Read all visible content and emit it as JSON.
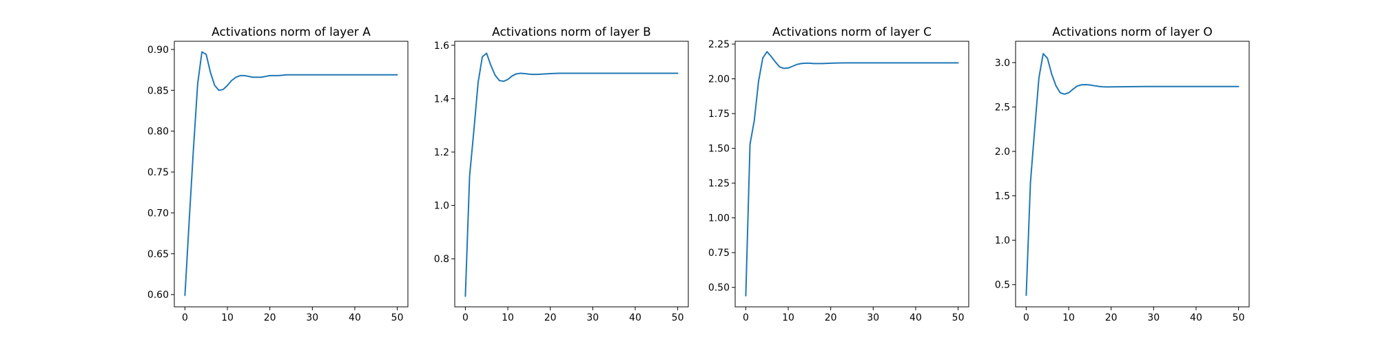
{
  "figure": {
    "background": "#ffffff",
    "line_color": "#1f77b4"
  },
  "chart_data": [
    {
      "type": "line",
      "title": "Activations norm of layer A",
      "xlabel": "",
      "ylabel": "",
      "grid": false,
      "xlim": [
        -2.5,
        52.5
      ],
      "ylim": [
        0.585,
        0.91
      ],
      "xticks": [
        0,
        10,
        20,
        30,
        40,
        50
      ],
      "yticks": [
        0.6,
        0.65,
        0.7,
        0.75,
        0.8,
        0.85,
        0.9
      ],
      "ytick_labels": [
        "0.60",
        "0.65",
        "0.70",
        "0.75",
        "0.80",
        "0.85",
        "0.90"
      ],
      "series": [
        {
          "x": [
            0,
            1,
            2,
            3,
            4,
            5,
            6,
            7,
            8,
            9,
            10,
            11,
            12,
            13,
            14,
            15,
            16,
            17,
            18,
            19,
            20,
            22,
            24,
            26,
            28,
            30,
            32,
            34,
            36,
            38,
            40,
            42,
            44,
            46,
            48,
            50
          ],
          "y": [
            0.599,
            0.69,
            0.778,
            0.858,
            0.897,
            0.894,
            0.872,
            0.856,
            0.85,
            0.851,
            0.856,
            0.862,
            0.866,
            0.868,
            0.868,
            0.867,
            0.866,
            0.866,
            0.866,
            0.867,
            0.868,
            0.868,
            0.869,
            0.869,
            0.869,
            0.869,
            0.869,
            0.869,
            0.869,
            0.869,
            0.869,
            0.869,
            0.869,
            0.869,
            0.869,
            0.869
          ]
        }
      ]
    },
    {
      "type": "line",
      "title": "Activations norm of layer B",
      "xlabel": "",
      "ylabel": "",
      "grid": false,
      "xlim": [
        -2.5,
        52.5
      ],
      "ylim": [
        0.62,
        1.615
      ],
      "xticks": [
        0,
        10,
        20,
        30,
        40,
        50
      ],
      "yticks": [
        0.8,
        1.0,
        1.2,
        1.4,
        1.6
      ],
      "ytick_labels": [
        "0.8",
        "1.0",
        "1.2",
        "1.4",
        "1.6"
      ],
      "series": [
        {
          "x": [
            0,
            1,
            2,
            3,
            4,
            5,
            6,
            7,
            8,
            9,
            10,
            11,
            12,
            13,
            14,
            15,
            16,
            17,
            18,
            19,
            20,
            22,
            24,
            26,
            28,
            30,
            32,
            34,
            36,
            38,
            40,
            42,
            44,
            46,
            48,
            50
          ],
          "y": [
            0.66,
            1.11,
            1.28,
            1.46,
            1.557,
            1.57,
            1.525,
            1.488,
            1.468,
            1.465,
            1.472,
            1.485,
            1.493,
            1.495,
            1.494,
            1.492,
            1.491,
            1.491,
            1.492,
            1.493,
            1.494,
            1.495,
            1.495,
            1.495,
            1.495,
            1.495,
            1.495,
            1.495,
            1.495,
            1.495,
            1.495,
            1.495,
            1.495,
            1.495,
            1.495,
            1.495
          ]
        }
      ]
    },
    {
      "type": "line",
      "title": "Activations norm of layer C",
      "xlabel": "",
      "ylabel": "",
      "grid": false,
      "xlim": [
        -2.5,
        52.5
      ],
      "ylim": [
        0.36,
        2.27
      ],
      "xticks": [
        0,
        10,
        20,
        30,
        40,
        50
      ],
      "yticks": [
        0.5,
        0.75,
        1.0,
        1.25,
        1.5,
        1.75,
        2.0,
        2.25
      ],
      "ytick_labels": [
        "0.50",
        "0.75",
        "1.00",
        "1.25",
        "1.50",
        "1.75",
        "2.00",
        "2.25"
      ],
      "series": [
        {
          "x": [
            0,
            1,
            2,
            3,
            4,
            5,
            6,
            7,
            8,
            9,
            10,
            11,
            12,
            13,
            14,
            15,
            16,
            17,
            18,
            19,
            20,
            22,
            24,
            26,
            28,
            30,
            32,
            34,
            36,
            38,
            40,
            42,
            44,
            46,
            48,
            50
          ],
          "y": [
            0.44,
            1.53,
            1.7,
            1.98,
            2.15,
            2.195,
            2.16,
            2.12,
            2.085,
            2.075,
            2.078,
            2.09,
            2.103,
            2.11,
            2.112,
            2.112,
            2.11,
            2.11,
            2.11,
            2.111,
            2.112,
            2.114,
            2.115,
            2.115,
            2.115,
            2.115,
            2.115,
            2.115,
            2.115,
            2.115,
            2.115,
            2.115,
            2.115,
            2.115,
            2.115,
            2.115
          ]
        }
      ]
    },
    {
      "type": "line",
      "title": "Activations norm of layer O",
      "xlabel": "",
      "ylabel": "",
      "grid": false,
      "xlim": [
        -2.5,
        52.5
      ],
      "ylim": [
        0.25,
        3.24
      ],
      "xticks": [
        0,
        10,
        20,
        30,
        40,
        50
      ],
      "yticks": [
        0.5,
        1.0,
        1.5,
        2.0,
        2.5,
        3.0
      ],
      "ytick_labels": [
        "0.5",
        "1.0",
        "1.5",
        "2.0",
        "2.5",
        "3.0"
      ],
      "series": [
        {
          "x": [
            0,
            1,
            2,
            3,
            4,
            5,
            6,
            7,
            8,
            9,
            10,
            11,
            12,
            13,
            14,
            15,
            16,
            17,
            18,
            19,
            20,
            22,
            24,
            26,
            28,
            30,
            32,
            34,
            36,
            38,
            40,
            42,
            44,
            46,
            48,
            50
          ],
          "y": [
            0.38,
            1.65,
            2.25,
            2.83,
            3.1,
            3.05,
            2.87,
            2.74,
            2.66,
            2.645,
            2.66,
            2.7,
            2.735,
            2.75,
            2.752,
            2.748,
            2.74,
            2.733,
            2.728,
            2.726,
            2.727,
            2.728,
            2.729,
            2.73,
            2.731,
            2.731,
            2.731,
            2.731,
            2.731,
            2.731,
            2.731,
            2.731,
            2.731,
            2.731,
            2.731,
            2.731
          ]
        }
      ]
    }
  ]
}
